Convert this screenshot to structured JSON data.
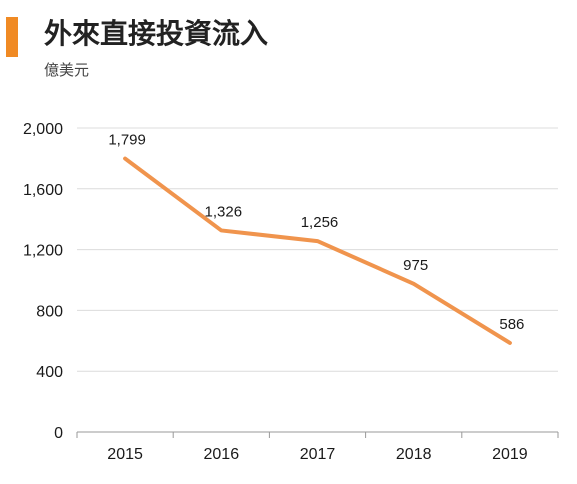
{
  "header": {
    "title": "外來直接投資流入",
    "subtitle": "億美元",
    "accent_color": "#f08a24"
  },
  "chart_data": {
    "type": "line",
    "title": "外來直接投資流入",
    "ylabel": "億美元",
    "xlabel": "",
    "categories": [
      "2015",
      "2016",
      "2017",
      "2018",
      "2019"
    ],
    "series": [
      {
        "values": [
          1799,
          1326,
          1256,
          975,
          586
        ],
        "color": "#f0944d"
      }
    ],
    "data_labels": [
      "1,799",
      "1,326",
      "1,256",
      "975",
      "586"
    ],
    "ylim": [
      0,
      2000
    ],
    "yticks": [
      0,
      400,
      800,
      1200,
      1600,
      2000
    ],
    "ytick_labels": [
      "0",
      "400",
      "800",
      "1,200",
      "1,600",
      "2,000"
    ],
    "grid": true,
    "legend": "none"
  }
}
